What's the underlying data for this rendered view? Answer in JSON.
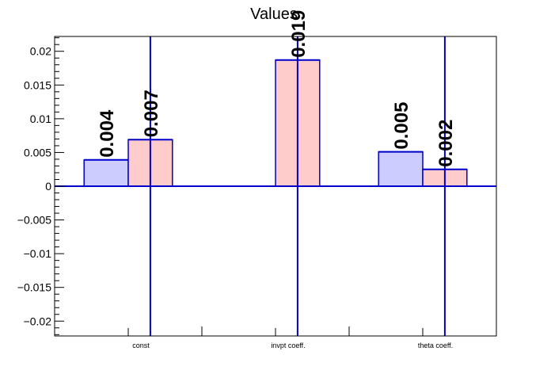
{
  "chart_data": {
    "type": "bar",
    "title": "Values",
    "xlabel": "",
    "ylabel": "",
    "ylim": [
      -0.0222,
      0.0222
    ],
    "yticks": [
      {
        "value": 0.02,
        "label": "0.02"
      },
      {
        "value": 0.015,
        "label": "0.015"
      },
      {
        "value": 0.01,
        "label": "0.01"
      },
      {
        "value": 0.005,
        "label": "0.005"
      },
      {
        "value": 0,
        "label": "0"
      },
      {
        "value": -0.005,
        "label": "−0.005"
      },
      {
        "value": -0.01,
        "label": "−0.01"
      },
      {
        "value": -0.015,
        "label": "−0.015"
      },
      {
        "value": -0.02,
        "label": "−0.02"
      }
    ],
    "categories": [
      "const",
      "invpt coeff.",
      "theta coeff."
    ],
    "grid": false,
    "series": [
      {
        "values": [
          0.0039,
          0.0,
          0.0051
        ],
        "labels": [
          "0.004",
          "",
          "0.005"
        ],
        "color": "#ccccff",
        "edge": "#0000cc"
      },
      {
        "values": [
          0.0069,
          0.0187,
          0.0025
        ],
        "labels": [
          "0.007",
          "0.019",
          "0.002"
        ],
        "color": "#ffcccc",
        "edge": "#0000cc"
      }
    ],
    "axis_color": "#000000",
    "line_color": "#0000cc"
  }
}
